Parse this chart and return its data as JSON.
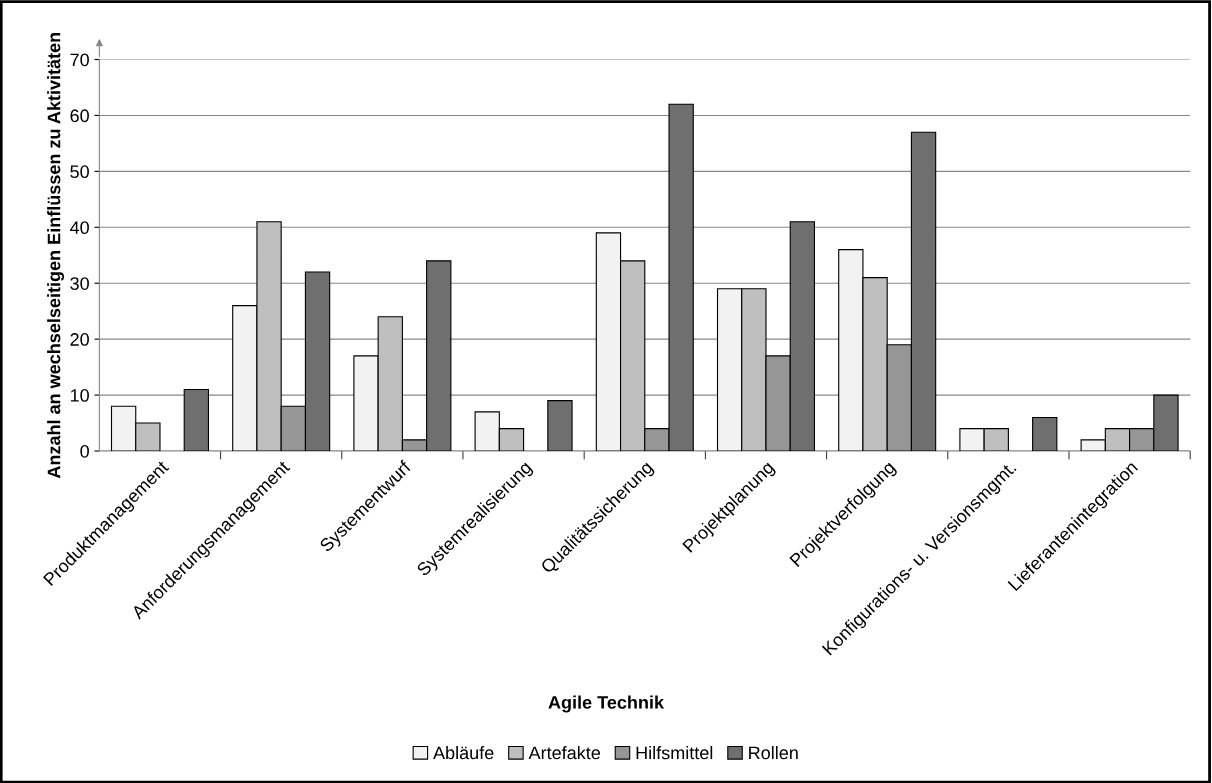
{
  "chart_data": {
    "type": "bar",
    "xlabel": "Agile Technik",
    "ylabel": "Anzahl an wechselseitigen Einflüssen zu Aktivitäten",
    "categories": [
      "Produktmanagement",
      "Anforderungsmanagement",
      "Systementwurf",
      "Systemrealisierung",
      "Qualitätssicherung",
      "Projektplanung",
      "Projektverfolgung",
      "Konfigurations- u. Versionsmgmt.",
      "Lieferantenintegration"
    ],
    "series": [
      {
        "name": "Abläufe",
        "color": "#f2f2f2",
        "values": [
          8,
          26,
          17,
          7,
          39,
          29,
          36,
          4,
          2
        ]
      },
      {
        "name": "Artefakte",
        "color": "#bfbfbf",
        "values": [
          5,
          41,
          24,
          4,
          34,
          29,
          31,
          4,
          4
        ]
      },
      {
        "name": "Hilfsmittel",
        "color": "#969696",
        "values": [
          0,
          8,
          2,
          0,
          4,
          17,
          19,
          0,
          4
        ]
      },
      {
        "name": "Rollen",
        "color": "#6f6f6f",
        "values": [
          11,
          32,
          34,
          9,
          62,
          41,
          57,
          6,
          10
        ]
      }
    ],
    "ylim": [
      0,
      70
    ],
    "yticks": [
      0,
      10,
      20,
      30,
      40,
      50,
      60,
      70
    ],
    "grid": "y",
    "legend": "bottom"
  }
}
